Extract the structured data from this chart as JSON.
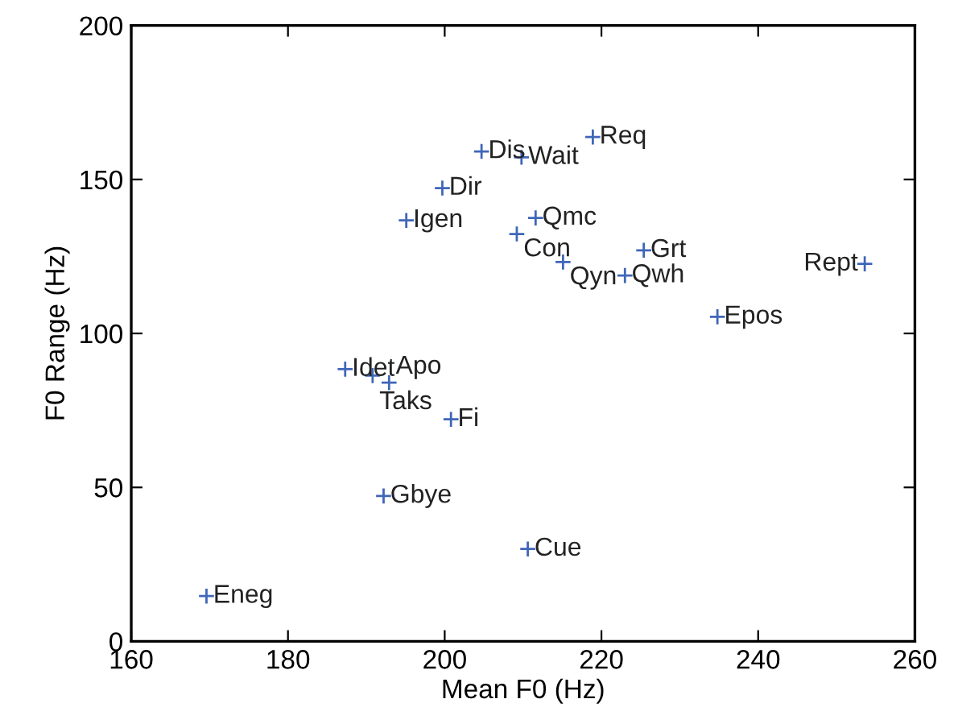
{
  "chart_data": {
    "type": "scatter",
    "xlabel": "Mean F0 (Hz)",
    "ylabel": "F0 Range (Hz)",
    "xlim": [
      160,
      260
    ],
    "ylim": [
      0,
      200
    ],
    "xticks": [
      160,
      180,
      200,
      220,
      240,
      260
    ],
    "yticks": [
      0,
      50,
      100,
      150,
      200
    ],
    "grid": false,
    "marker": "cross",
    "series": [
      {
        "color": "#3f66b8",
        "x": [
          169.6,
          192.2,
          210.6,
          200.8,
          187.3,
          190.8,
          192.9,
          195.1,
          199.7,
          204.7,
          209.8,
          218.9,
          211.6,
          209.2,
          215.1,
          225.4,
          223.0,
          234.8,
          253.6
        ],
        "values": [
          14.7,
          47.2,
          30.0,
          72.1,
          88.4,
          86.3,
          84.0,
          136.7,
          147.2,
          159.1,
          157.2,
          163.8,
          137.5,
          132.3,
          123.2,
          127.0,
          118.8,
          105.4,
          122.6
        ]
      }
    ],
    "annotations": [
      {
        "text": "Eneg",
        "x": 169.6,
        "y": 14.7
      },
      {
        "text": "Gbye",
        "x": 192.2,
        "y": 47.2
      },
      {
        "text": "Cue",
        "x": 210.6,
        "y": 30.0
      },
      {
        "text": "Fi",
        "x": 200.8,
        "y": 72.1
      },
      {
        "text": "Idet",
        "x": 187.3,
        "y": 88.4
      },
      {
        "text": "Taks",
        "x": 190.8,
        "y": 86.3
      },
      {
        "text": "Apo",
        "x": 192.9,
        "y": 84.0
      },
      {
        "text": "Igen",
        "x": 195.1,
        "y": 136.7
      },
      {
        "text": "Dir",
        "x": 199.7,
        "y": 147.2
      },
      {
        "text": "Dis",
        "x": 204.7,
        "y": 159.1
      },
      {
        "text": "Wait",
        "x": 209.8,
        "y": 157.2
      },
      {
        "text": "Req",
        "x": 218.9,
        "y": 163.8
      },
      {
        "text": "Qmc",
        "x": 211.6,
        "y": 137.5
      },
      {
        "text": "Con",
        "x": 209.2,
        "y": 132.3
      },
      {
        "text": "Qyn",
        "x": 215.1,
        "y": 123.2
      },
      {
        "text": "Grt",
        "x": 225.4,
        "y": 127.0
      },
      {
        "text": "Qwh",
        "x": 223.0,
        "y": 118.8
      },
      {
        "text": "Epos",
        "x": 234.8,
        "y": 105.4
      },
      {
        "text": "Rept",
        "x": 253.6,
        "y": 122.6
      }
    ]
  }
}
